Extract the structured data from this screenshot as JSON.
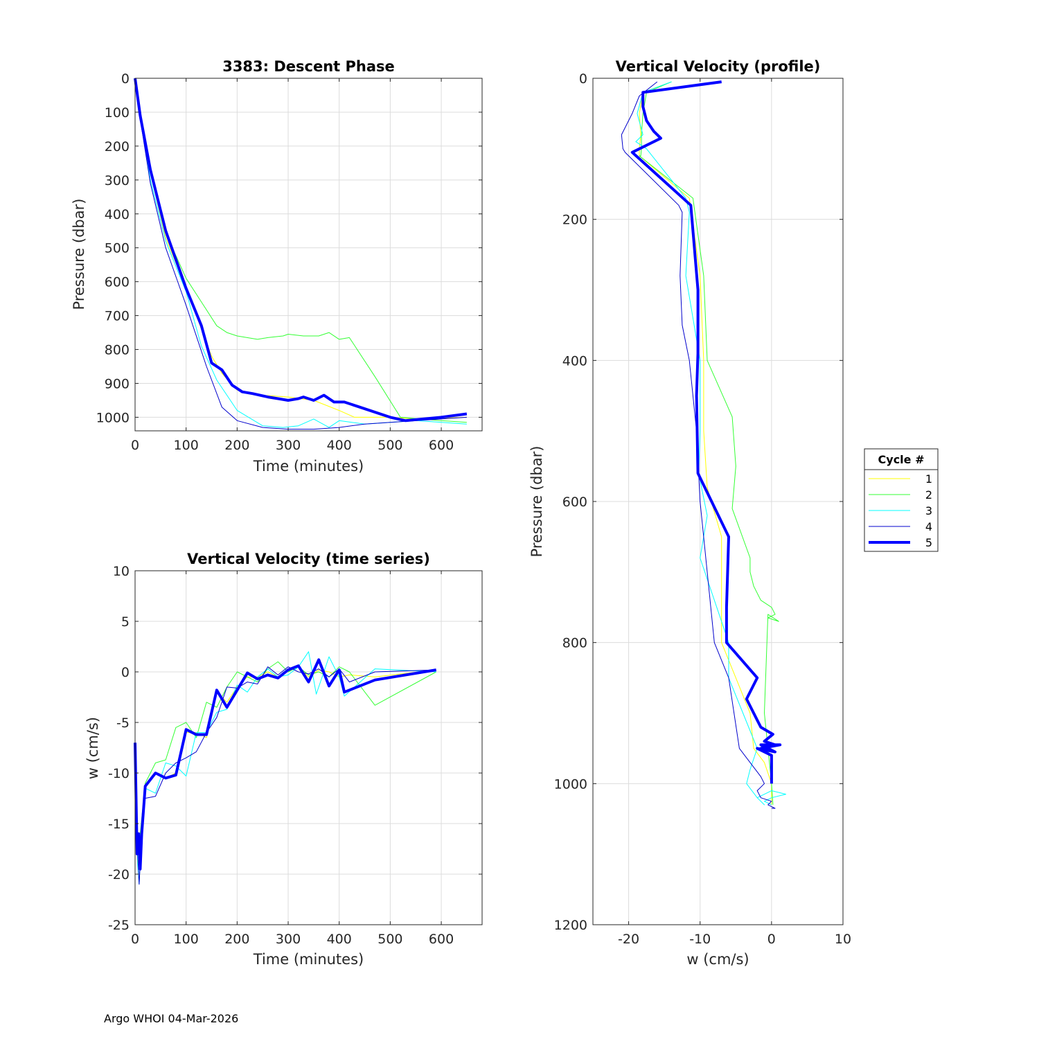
{
  "footer": "Argo WHOI 04-Mar-2026",
  "legend": {
    "title": "Cycle #",
    "entries": [
      "1",
      "2",
      "3",
      "4",
      "5"
    ]
  },
  "colors": {
    "1": "#ffff00",
    "2": "#33ff33",
    "3": "#00ffff",
    "4": "#0000cc",
    "5": "#0000ff"
  },
  "chart_data": [
    {
      "id": "descent",
      "type": "line",
      "title": "3383: Descent Phase",
      "xlabel": "Time (minutes)",
      "ylabel": "Pressure (dbar)",
      "xlim": [
        0,
        680
      ],
      "ylim": [
        1040,
        0
      ],
      "y_reversed": true,
      "grid": true,
      "xticks": [
        0,
        100,
        200,
        300,
        400,
        500,
        600
      ],
      "yticks": [
        0,
        100,
        200,
        300,
        400,
        500,
        600,
        700,
        800,
        900,
        1000
      ],
      "series": [
        {
          "name": "1",
          "x": [
            0,
            10,
            30,
            60,
            100,
            130,
            150,
            170,
            200,
            250,
            300,
            350,
            400,
            430,
            500,
            550,
            650
          ],
          "y": [
            0,
            110,
            280,
            470,
            620,
            740,
            820,
            870,
            920,
            935,
            940,
            950,
            980,
            1000,
            1000,
            1005,
            1000
          ]
        },
        {
          "name": "2",
          "x": [
            0,
            10,
            30,
            50,
            70,
            100,
            130,
            160,
            180,
            200,
            240,
            260,
            290,
            300,
            330,
            360,
            380,
            400,
            420,
            470,
            520,
            600,
            650
          ],
          "y": [
            0,
            100,
            270,
            400,
            490,
            590,
            660,
            730,
            750,
            760,
            770,
            765,
            760,
            755,
            760,
            760,
            750,
            770,
            765,
            880,
            1000,
            1010,
            1015
          ]
        },
        {
          "name": "3",
          "x": [
            0,
            10,
            30,
            60,
            100,
            130,
            160,
            200,
            250,
            290,
            320,
            350,
            380,
            400,
            450,
            500,
            550,
            650
          ],
          "y": [
            0,
            120,
            300,
            480,
            630,
            790,
            890,
            980,
            1025,
            1030,
            1025,
            1005,
            1030,
            1010,
            1020,
            1015,
            1010,
            1020
          ]
        },
        {
          "name": "4",
          "x": [
            0,
            10,
            30,
            60,
            100,
            140,
            170,
            200,
            250,
            300,
            350,
            400,
            450,
            500,
            600,
            650
          ],
          "y": [
            0,
            120,
            310,
            500,
            670,
            850,
            970,
            1010,
            1030,
            1035,
            1035,
            1030,
            1020,
            1015,
            1005,
            1000
          ]
        },
        {
          "name": "5",
          "x": [
            0,
            10,
            30,
            60,
            100,
            130,
            150,
            170,
            190,
            210,
            230,
            260,
            280,
            300,
            320,
            330,
            350,
            370,
            390,
            410,
            440,
            500,
            530,
            600,
            650
          ],
          "y": [
            0,
            110,
            270,
            450,
            620,
            730,
            840,
            860,
            905,
            925,
            930,
            940,
            945,
            950,
            945,
            940,
            950,
            935,
            955,
            955,
            970,
            1000,
            1010,
            1000,
            990
          ]
        }
      ]
    },
    {
      "id": "ts",
      "type": "line",
      "title": "Vertical Velocity (time series)",
      "xlabel": "Time (minutes)",
      "ylabel": "w (cm/s)",
      "xlim": [
        0,
        680
      ],
      "ylim": [
        -25,
        10
      ],
      "grid": true,
      "xticks": [
        0,
        100,
        200,
        300,
        400,
        500,
        600
      ],
      "yticks": [
        10,
        5,
        0,
        -5,
        -10,
        -15,
        -20,
        -25
      ],
      "series": [
        {
          "name": "1",
          "x": [
            0,
            5,
            10,
            20,
            40,
            60,
            80,
            100,
            120,
            140,
            160,
            180,
            200,
            220,
            240,
            260,
            280,
            300,
            320,
            340,
            360,
            380,
            400,
            420,
            470,
            590
          ],
          "y": [
            -7,
            -19,
            -18,
            -11.5,
            -10,
            -10.5,
            -10,
            -6,
            -6,
            -6.5,
            -2,
            -3,
            -1.5,
            -0.5,
            -0.5,
            0,
            -0.5,
            0.3,
            0.5,
            -0.5,
            0.2,
            0,
            -0.5,
            -0.3,
            -0.5,
            0.2
          ]
        },
        {
          "name": "2",
          "x": [
            0,
            5,
            10,
            20,
            40,
            60,
            80,
            100,
            120,
            140,
            160,
            180,
            200,
            220,
            240,
            260,
            280,
            300,
            320,
            340,
            360,
            380,
            400,
            420,
            470,
            590
          ],
          "y": [
            -7,
            -18,
            -16,
            -11,
            -9,
            -8.7,
            -5.5,
            -5,
            -6.5,
            -3,
            -3.5,
            -1.5,
            0,
            -0.5,
            -1,
            0.3,
            1,
            0,
            0.5,
            -0.3,
            0,
            -0.5,
            0.5,
            0,
            -3.3,
            0
          ]
        },
        {
          "name": "3",
          "x": [
            0,
            5,
            8,
            12,
            20,
            40,
            60,
            80,
            100,
            120,
            140,
            160,
            180,
            200,
            220,
            240,
            260,
            280,
            300,
            320,
            340,
            355,
            370,
            380,
            400,
            410,
            430,
            470,
            590
          ],
          "y": [
            -7,
            -19,
            -21,
            -16,
            -11.5,
            -12,
            -9,
            -9.3,
            -10.3,
            -6,
            -6,
            -4,
            -3.7,
            -1.3,
            -2,
            -0.5,
            0.3,
            -0.5,
            -0.3,
            0.5,
            2,
            -2.2,
            0,
            1.5,
            -0.5,
            -2.4,
            -1.5,
            0.3,
            0
          ]
        },
        {
          "name": "4",
          "x": [
            0,
            5,
            8,
            12,
            20,
            40,
            60,
            80,
            100,
            120,
            140,
            160,
            180,
            200,
            220,
            240,
            260,
            280,
            300,
            320,
            340,
            360,
            380,
            400,
            420,
            470,
            590
          ],
          "y": [
            -7,
            -18,
            -21,
            -17,
            -12.5,
            -12.3,
            -10,
            -9,
            -8.5,
            -7.9,
            -6,
            -4.5,
            -1.5,
            -1.6,
            -1,
            -1.2,
            0.5,
            -0.3,
            0.5,
            0,
            -0.2,
            0.3,
            -0.5,
            0.3,
            -1,
            0,
            0.2
          ]
        },
        {
          "name": "5",
          "x": [
            0,
            4,
            7,
            10,
            13,
            20,
            40,
            60,
            80,
            100,
            120,
            140,
            160,
            180,
            200,
            220,
            240,
            260,
            280,
            300,
            320,
            340,
            360,
            380,
            400,
            410,
            470,
            590
          ],
          "y": [
            -7,
            -18,
            -16,
            -19.5,
            -16,
            -11.3,
            -10,
            -10.5,
            -10.2,
            -5.7,
            -6.2,
            -6.2,
            -1.8,
            -3.5,
            -1.8,
            -0.1,
            -0.7,
            -0.3,
            -0.6,
            0.2,
            0.6,
            -1,
            1.2,
            -1.4,
            0.2,
            -2,
            -0.8,
            0.2
          ]
        }
      ]
    },
    {
      "id": "prof",
      "type": "line",
      "title": "Vertical Velocity (profile)",
      "xlabel": "w (cm/s)",
      "ylabel": "Pressure (dbar)",
      "xlim": [
        -25,
        10
      ],
      "ylim": [
        1200,
        0
      ],
      "y_reversed": true,
      "grid": true,
      "xticks": [
        -20,
        -10,
        0,
        10
      ],
      "yticks": [
        0,
        200,
        400,
        600,
        800,
        1000,
        1200
      ],
      "series": [
        {
          "name": "1",
          "x": [
            -14,
            -18,
            -18.5,
            -18.3,
            -18.5,
            -18.5,
            -11.5,
            -10,
            -9.5,
            -9.5,
            -9,
            -7,
            -7,
            -7,
            -5,
            -3,
            -2.5,
            -1,
            0,
            0
          ],
          "y": [
            5,
            20,
            50,
            80,
            100,
            110,
            170,
            280,
            400,
            500,
            580,
            650,
            700,
            800,
            850,
            900,
            950,
            970,
            1000,
            1030
          ]
        },
        {
          "name": "2",
          "x": [
            -14,
            -17.5,
            -18,
            -18.2,
            -18.2,
            -18.3,
            -18.5,
            -11,
            -9.5,
            -9,
            -9,
            -5.5,
            -5,
            -5.5,
            -3,
            -3,
            -2.5,
            -1.5,
            0,
            0.5,
            -0.5,
            1,
            1,
            -0.5,
            -1,
            0,
            0.2
          ],
          "y": [
            5,
            20,
            50,
            80,
            100,
            110,
            110,
            170,
            280,
            400,
            400,
            480,
            550,
            610,
            680,
            700,
            720,
            740,
            750,
            760,
            765,
            770,
            770,
            760,
            900,
            1000,
            1030
          ]
        },
        {
          "name": "3",
          "x": [
            -14,
            -18,
            -18.8,
            -18,
            -19,
            -17.5,
            -12,
            -11.5,
            -12,
            -10,
            -10,
            -10.2,
            -9,
            -10,
            -6,
            -6,
            -4,
            -2,
            -3,
            -3.5,
            -2,
            -1,
            -2,
            0,
            2,
            0,
            -1,
            0
          ],
          "y": [
            5,
            20,
            50,
            80,
            90,
            100,
            170,
            190,
            280,
            400,
            500,
            560,
            620,
            680,
            800,
            850,
            900,
            950,
            980,
            1000,
            1020,
            1030,
            1020,
            1010,
            1015,
            1020,
            1025,
            1030
          ]
        },
        {
          "name": "4",
          "x": [
            -16,
            -18.5,
            -19.5,
            -21,
            -20.8,
            -20.5,
            -13,
            -12.5,
            -12.8,
            -12.5,
            -11.5,
            -10.5,
            -10,
            -8,
            -6,
            -4.5,
            -1.5,
            -1,
            -2,
            -1.5,
            0,
            -0.5,
            0.5,
            0
          ],
          "y": [
            5,
            25,
            50,
            80,
            100,
            105,
            180,
            190,
            280,
            350,
            400,
            500,
            600,
            800,
            850,
            950,
            990,
            1000,
            1010,
            1020,
            1025,
            1030,
            1035,
            1035
          ]
        },
        {
          "name": "5",
          "x": [
            -7,
            -18,
            -18,
            -17.5,
            -16.5,
            -15.5,
            -19.5,
            -11.3,
            -10.3,
            -10.3,
            -10.5,
            -10.3,
            -6,
            -6.3,
            -6.3,
            -2,
            -3.5,
            -2,
            -1.5,
            0.2,
            -1,
            0.5,
            -1.5,
            1.2,
            -1.5,
            0.5,
            -2,
            0,
            0
          ],
          "y": [
            5,
            20,
            40,
            60,
            75,
            85,
            105,
            180,
            300,
            390,
            450,
            560,
            650,
            750,
            800,
            850,
            880,
            910,
            920,
            930,
            940,
            945,
            950,
            945,
            945,
            955,
            950,
            960,
            1000
          ]
        }
      ]
    }
  ]
}
